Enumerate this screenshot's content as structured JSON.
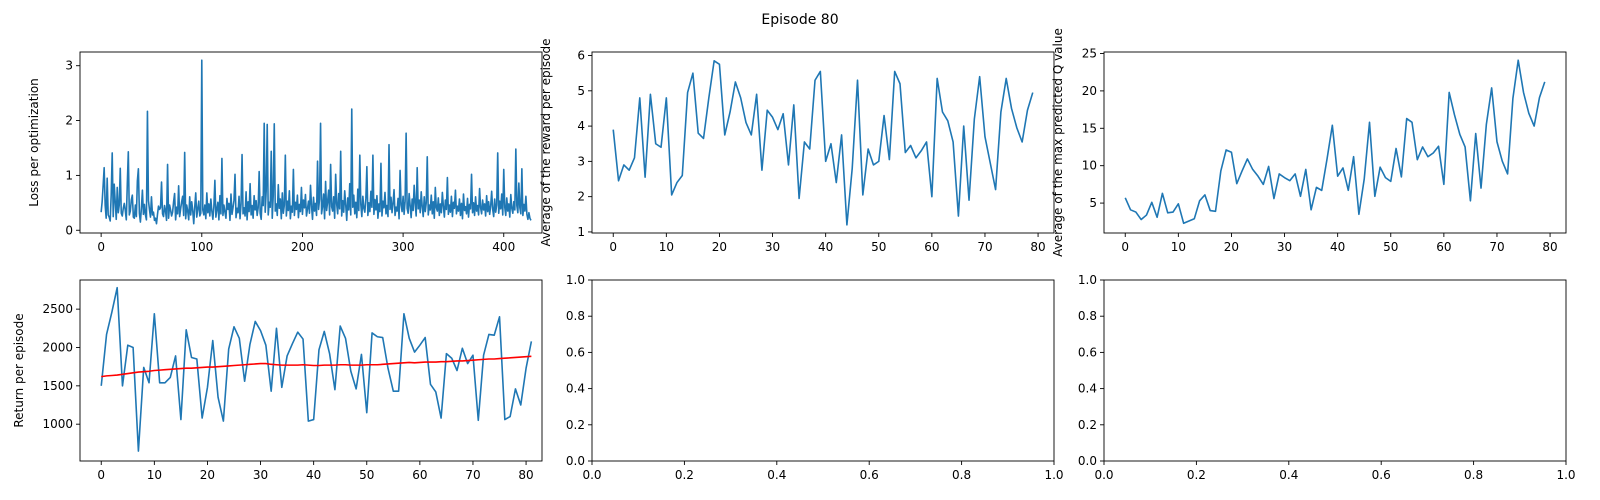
{
  "figure": {
    "suptitle": "Episode 80"
  },
  "chart_data": [
    {
      "type": "line",
      "ylabel": "Loss per optimization",
      "xlim": [
        -21,
        438
      ],
      "ylim": [
        -0.05,
        3.25
      ],
      "xticks": [
        0,
        100,
        200,
        300,
        400
      ],
      "yticks": [
        0,
        1,
        2,
        3
      ],
      "series": [
        {
          "color": "#1f77b4",
          "y": [
            0.33,
            0.52,
            0.82,
            1.14,
            0.46,
            0.22,
            0.95,
            0.28,
            0.24,
            0.17,
            0.65,
            1.41,
            0.25,
            0.84,
            0.52,
            0.2,
            0.78,
            0.32,
            0.46,
            1.13,
            0.31,
            0.26,
            0.4,
            0.49,
            0.36,
            0.19,
            0.85,
            1.43,
            0.28,
            0.35,
            0.55,
            0.64,
            0.24,
            0.22,
            0.46,
            0.25,
            0.9,
            1.12,
            0.31,
            0.15,
            0.4,
            0.73,
            0.29,
            0.47,
            0.28,
            0.19,
            2.17,
            0.54,
            0.38,
            0.24,
            0.61,
            0.28,
            0.33,
            0.18,
            0.22,
            0.12,
            0.29,
            0.44,
            0.38,
            0.41,
            0.88,
            0.3,
            0.25,
            0.45,
            0.35,
            0.18,
            1.2,
            0.22,
            0.46,
            0.37,
            0.26,
            0.33,
            0.52,
            0.67,
            0.19,
            0.42,
            0.3,
            0.81,
            0.25,
            0.39,
            0.52,
            0.62,
            0.27,
            1.42,
            0.21,
            0.46,
            0.35,
            0.19,
            0.61,
            0.28,
            0.52,
            0.36,
            0.12,
            0.43,
            0.68,
            0.24,
            0.39,
            0.53,
            0.26,
            0.31,
            3.1,
            0.37,
            0.28,
            0.46,
            0.21,
            0.68,
            0.32,
            0.48,
            0.26,
            0.57,
            0.35,
            0.2,
            0.43,
            0.91,
            0.24,
            0.38,
            0.51,
            0.19,
            0.63,
            0.3,
            1.31,
            0.27,
            0.46,
            0.33,
            0.22,
            0.58,
            0.38,
            0.49,
            0.18,
            0.66,
            0.29,
            0.41,
            0.55,
            1.02,
            0.23,
            0.4,
            0.32,
            0.62,
            0.21,
            0.48,
            1.38,
            0.3,
            0.41,
            0.26,
            0.7,
            0.19,
            0.52,
            0.34,
            0.85,
            0.28,
            0.45,
            0.22,
            0.63,
            0.37,
            0.54,
            0.27,
            0.41,
            1.07,
            0.31,
            0.2,
            0.61,
            0.45,
            1.95,
            0.33,
            0.72,
            1.93,
            0.28,
            0.51,
            0.42,
            1.44,
            0.22,
            0.64,
            1.94,
            0.35,
            0.48,
            0.27,
            0.83,
            0.4,
            0.57,
            0.21,
            0.68,
            0.31,
            0.46,
            1.37,
            0.26,
            0.53,
            0.36,
            0.72,
            0.21,
            0.44,
            0.33,
            1.11,
            0.27,
            0.51,
            0.38,
            0.64,
            0.23,
            0.47,
            0.34,
            0.78,
            0.29,
            0.55,
            0.41,
            0.65,
            0.26,
            0.39,
            0.53,
            0.31,
            0.82,
            0.45,
            0.2,
            0.6,
            0.35,
            0.49,
            0.27,
            1.26,
            0.38,
            0.57,
            1.95,
            0.3,
            0.44,
            0.66,
            0.21,
            0.89,
            0.36,
            0.52,
            0.73,
            0.28,
            1.2,
            0.43,
            0.35,
            0.61,
            0.22,
            1.02,
            0.48,
            0.3,
            0.67,
            0.39,
            1.44,
            0.26,
            0.54,
            0.33,
            0.72,
            0.46,
            0.18,
            0.59,
            0.37,
            0.85,
            0.28,
            2.21,
            0.42,
            0.64,
            0.3,
            0.51,
            0.23,
            0.75,
            0.36,
            1.37,
            0.47,
            0.25,
            0.62,
            0.4,
            0.33,
            0.58,
            1.16,
            0.27,
            0.5,
            0.34,
            0.71,
            0.42,
            1.37,
            0.29,
            0.56,
            0.37,
            0.63,
            0.22,
            0.48,
            0.34,
            1.22,
            0.26,
            0.53,
            0.41,
            0.69,
            0.3,
            0.45,
            0.25,
            1.56,
            0.38,
            0.6,
            0.32,
            0.49,
            0.74,
            0.27,
            0.42,
            0.35,
            0.58,
            0.21,
            1.09,
            0.46,
            0.34,
            0.62,
            0.29,
            0.53,
            1.77,
            0.4,
            0.31,
            0.67,
            0.45,
            0.23,
            0.57,
            0.36,
            0.82,
            0.48,
            0.26,
            1.14,
            0.39,
            0.55,
            0.32,
            0.7,
            0.43,
            0.25,
            0.61,
            0.34,
            0.5,
            1.34,
            0.28,
            0.46,
            0.37,
            0.64,
            0.3,
            0.52,
            0.22,
            0.78,
            0.41,
            0.35,
            0.59,
            0.27,
            0.48,
            0.32,
            0.69,
            0.44,
            0.24,
            0.55,
            0.38,
            0.96,
            0.29,
            0.46,
            0.33,
            0.62,
            0.25,
            0.51,
            0.4,
            0.73,
            0.3,
            0.44,
            0.35,
            0.57,
            0.27,
            0.49,
            0.21,
            0.66,
            0.36,
            0.43,
            0.3,
            0.58,
            0.24,
            0.47,
            0.39,
            1.02,
            0.32,
            0.5,
            0.27,
            0.61,
            0.35,
            0.45,
            0.28,
            0.76,
            0.41,
            0.3,
            0.55,
            0.37,
            0.48,
            0.26,
            0.63,
            0.34,
            0.52,
            0.29,
            0.44,
            0.71,
            0.38,
            0.25,
            0.57,
            0.33,
            0.46,
            1.41,
            0.31,
            0.53,
            0.39,
            0.66,
            0.28,
            1.11,
            0.42,
            0.27,
            0.59,
            0.35,
            0.48,
            0.24,
            0.65,
            0.4,
            0.31,
            0.52,
            0.37,
            1.48,
            0.45,
            0.32,
            0.86,
            0.41,
            0.3,
            1.12,
            0.27,
            0.47,
            0.35,
            0.62,
            0.29,
            0.2,
            0.32,
            0.22,
            0.18
          ]
        }
      ]
    },
    {
      "type": "line",
      "ylabel": "Average of the reward per episode",
      "xlim": [
        -4,
        83
      ],
      "ylim": [
        0.97,
        6.1
      ],
      "xticks": [
        0,
        10,
        20,
        30,
        40,
        50,
        60,
        70,
        80
      ],
      "yticks": [
        1,
        2,
        3,
        4,
        5,
        6
      ],
      "series": [
        {
          "color": "#1f77b4",
          "y": [
            3.9,
            2.45,
            2.9,
            2.75,
            3.1,
            4.8,
            2.55,
            4.9,
            3.5,
            3.4,
            4.8,
            2.05,
            2.4,
            2.6,
            4.95,
            5.5,
            3.8,
            3.65,
            4.8,
            5.85,
            5.75,
            3.75,
            4.4,
            5.25,
            4.8,
            4.1,
            3.75,
            4.9,
            2.75,
            4.45,
            4.25,
            3.9,
            4.35,
            2.9,
            4.6,
            1.95,
            3.55,
            3.35,
            5.3,
            5.55,
            3.0,
            3.5,
            2.4,
            3.75,
            1.2,
            2.8,
            5.3,
            2.05,
            3.35,
            2.9,
            3.0,
            4.3,
            3.05,
            5.55,
            5.2,
            3.25,
            3.45,
            3.1,
            3.3,
            3.55,
            2.0,
            5.35,
            4.4,
            4.15,
            3.55,
            1.45,
            4.0,
            1.9,
            4.2,
            5.4,
            3.7,
            2.95,
            2.2,
            4.4,
            5.35,
            4.5,
            3.95,
            3.55,
            4.45,
            4.95
          ]
        }
      ]
    },
    {
      "type": "line",
      "ylabel": "Average of the max predicted Q value",
      "xlim": [
        -4,
        83
      ],
      "ylim": [
        1.0,
        25.2
      ],
      "xticks": [
        0,
        10,
        20,
        30,
        40,
        50,
        60,
        70,
        80
      ],
      "yticks": [
        5,
        10,
        15,
        20,
        25
      ],
      "series": [
        {
          "color": "#1f77b4",
          "y": [
            5.7,
            4.1,
            3.8,
            2.8,
            3.4,
            5.1,
            3.1,
            6.3,
            3.7,
            3.8,
            4.9,
            2.3,
            2.6,
            2.9,
            5.3,
            6.1,
            4.0,
            3.9,
            9.3,
            12.1,
            11.8,
            7.6,
            9.3,
            10.9,
            9.5,
            8.6,
            7.5,
            9.9,
            5.6,
            8.9,
            8.4,
            8.0,
            8.9,
            5.9,
            9.5,
            4.1,
            7.1,
            6.7,
            10.9,
            15.4,
            8.6,
            9.7,
            6.7,
            11.2,
            3.5,
            8.2,
            15.8,
            5.9,
            9.8,
            8.4,
            7.9,
            12.3,
            8.5,
            16.3,
            15.8,
            10.8,
            12.5,
            11.2,
            11.7,
            12.6,
            7.5,
            19.8,
            16.8,
            14.2,
            12.5,
            5.3,
            14.3,
            7.0,
            15.5,
            20.4,
            13.2,
            10.6,
            8.9,
            19.0,
            24.1,
            19.8,
            17.0,
            15.3,
            19.1,
            21.2
          ]
        }
      ]
    },
    {
      "type": "line",
      "ylabel": "Return per episode",
      "xlim": [
        -4,
        83
      ],
      "ylim": [
        520,
        2880
      ],
      "xticks": [
        0,
        10,
        20,
        30,
        40,
        50,
        60,
        70,
        80
      ],
      "yticks": [
        1000,
        1500,
        2000,
        2500
      ],
      "series": [
        {
          "color": "#1f77b4",
          "y": [
            1500,
            2170,
            2460,
            2780,
            1500,
            2030,
            2000,
            650,
            1740,
            1540,
            2440,
            1540,
            1540,
            1610,
            1890,
            1060,
            2230,
            1870,
            1850,
            1080,
            1480,
            2090,
            1350,
            1040,
            1980,
            2270,
            2120,
            1560,
            2040,
            2340,
            2220,
            2030,
            1430,
            2250,
            1480,
            1890,
            2050,
            2200,
            2110,
            1040,
            1060,
            1970,
            2210,
            1920,
            1450,
            2280,
            2120,
            1690,
            1460,
            1910,
            1150,
            2190,
            2140,
            2130,
            1730,
            1430,
            1430,
            2440,
            2120,
            1940,
            2030,
            2130,
            1520,
            1420,
            1080,
            1920,
            1860,
            1700,
            1990,
            1790,
            1900,
            1050,
            1900,
            2170,
            2160,
            2400,
            1060,
            1100,
            1460,
            1250,
            1730,
            2080
          ]
        },
        {
          "color": "#ff0000",
          "y": [
            1620,
            1630,
            1635,
            1640,
            1650,
            1660,
            1670,
            1680,
            1685,
            1690,
            1700,
            1705,
            1710,
            1715,
            1720,
            1725,
            1730,
            1730,
            1735,
            1740,
            1745,
            1745,
            1750,
            1755,
            1760,
            1765,
            1770,
            1775,
            1780,
            1785,
            1790,
            1790,
            1780,
            1775,
            1770,
            1770,
            1770,
            1770,
            1775,
            1770,
            1765,
            1765,
            1770,
            1770,
            1770,
            1775,
            1775,
            1770,
            1770,
            1770,
            1775,
            1775,
            1775,
            1780,
            1785,
            1790,
            1795,
            1800,
            1805,
            1800,
            1805,
            1810,
            1810,
            1810,
            1815,
            1815,
            1820,
            1825,
            1825,
            1830,
            1835,
            1840,
            1845,
            1850,
            1850,
            1855,
            1860,
            1865,
            1870,
            1875,
            1880,
            1885
          ]
        }
      ]
    },
    {
      "type": "line",
      "xlim": [
        0,
        1
      ],
      "ylim": [
        0,
        1
      ],
      "xticks": [
        0.0,
        0.2,
        0.4,
        0.6,
        0.8,
        1.0
      ],
      "yticks": [
        0.0,
        0.2,
        0.4,
        0.6,
        0.8,
        1.0
      ],
      "series": []
    },
    {
      "type": "line",
      "xlim": [
        0,
        1
      ],
      "ylim": [
        0,
        1
      ],
      "xticks": [
        0.0,
        0.2,
        0.4,
        0.6,
        0.8,
        1.0
      ],
      "yticks": [
        0.0,
        0.2,
        0.4,
        0.6,
        0.8,
        1.0
      ],
      "series": []
    }
  ]
}
